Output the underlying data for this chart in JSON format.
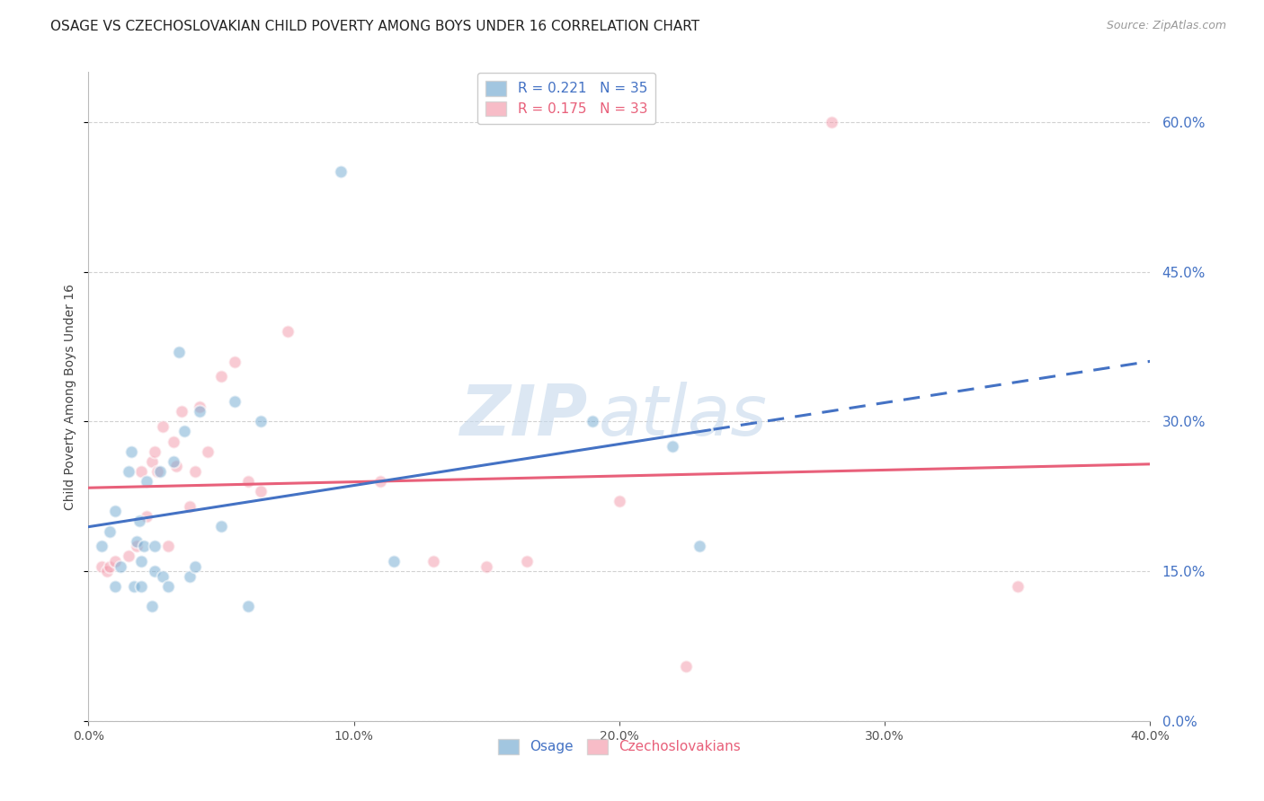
{
  "title": "OSAGE VS CZECHOSLOVAKIAN CHILD POVERTY AMONG BOYS UNDER 16 CORRELATION CHART",
  "source_text": "Source: ZipAtlas.com",
  "ylabel": "Child Poverty Among Boys Under 16",
  "osage_R": 0.221,
  "osage_N": 35,
  "czech_R": 0.175,
  "czech_N": 33,
  "xmin": 0.0,
  "xmax": 0.4,
  "ymin": 0.0,
  "ymax": 0.65,
  "yticks": [
    0.0,
    0.15,
    0.3,
    0.45,
    0.6
  ],
  "xticks": [
    0.0,
    0.1,
    0.2,
    0.3,
    0.4
  ],
  "osage_color": "#7BAFD4",
  "czech_color": "#F4A0B0",
  "osage_line_color": "#4472C4",
  "czech_line_color": "#E8607A",
  "watermark_text_zip": "ZIP",
  "watermark_text_atlas": "atlas",
  "watermark_color": "#C5D8EC",
  "background_color": "#FFFFFF",
  "grid_color": "#CCCCCC",
  "osage_x": [
    0.005,
    0.008,
    0.01,
    0.01,
    0.012,
    0.015,
    0.016,
    0.017,
    0.018,
    0.019,
    0.02,
    0.02,
    0.021,
    0.022,
    0.024,
    0.025,
    0.025,
    0.027,
    0.028,
    0.03,
    0.032,
    0.034,
    0.036,
    0.038,
    0.04,
    0.042,
    0.05,
    0.055,
    0.06,
    0.065,
    0.095,
    0.115,
    0.19,
    0.22,
    0.23
  ],
  "osage_y": [
    0.175,
    0.19,
    0.135,
    0.21,
    0.155,
    0.25,
    0.27,
    0.135,
    0.18,
    0.2,
    0.135,
    0.16,
    0.175,
    0.24,
    0.115,
    0.15,
    0.175,
    0.25,
    0.145,
    0.135,
    0.26,
    0.37,
    0.29,
    0.145,
    0.155,
    0.31,
    0.195,
    0.32,
    0.115,
    0.3,
    0.55,
    0.16,
    0.3,
    0.275,
    0.175
  ],
  "czech_x": [
    0.005,
    0.007,
    0.008,
    0.01,
    0.015,
    0.018,
    0.02,
    0.022,
    0.024,
    0.025,
    0.026,
    0.028,
    0.03,
    0.032,
    0.033,
    0.035,
    0.038,
    0.04,
    0.042,
    0.045,
    0.05,
    0.055,
    0.06,
    0.065,
    0.075,
    0.11,
    0.13,
    0.15,
    0.165,
    0.2,
    0.225,
    0.28,
    0.35
  ],
  "czech_y": [
    0.155,
    0.15,
    0.155,
    0.16,
    0.165,
    0.175,
    0.25,
    0.205,
    0.26,
    0.27,
    0.25,
    0.295,
    0.175,
    0.28,
    0.255,
    0.31,
    0.215,
    0.25,
    0.315,
    0.27,
    0.345,
    0.36,
    0.24,
    0.23,
    0.39,
    0.24,
    0.16,
    0.155,
    0.16,
    0.22,
    0.055,
    0.6,
    0.135
  ],
  "title_fontsize": 11,
  "axis_label_fontsize": 10,
  "tick_fontsize": 10,
  "legend_fontsize": 11,
  "source_fontsize": 9,
  "marker_size": 100,
  "osage_line_split": 0.235
}
